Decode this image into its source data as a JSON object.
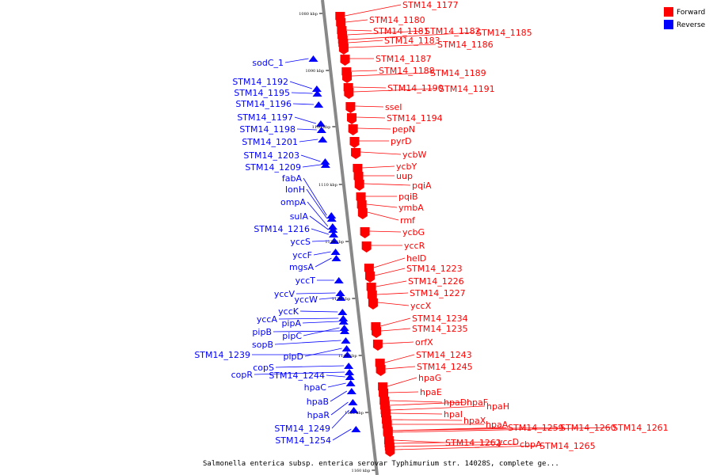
{
  "title": "Salmonella enterica subsp. enterica serovar Typhimurium str. 14028S, complete ge...",
  "legend": [
    {
      "label": "Forward",
      "color": "#ff0000"
    },
    {
      "label": "Reverse",
      "color": "#0000ff"
    }
  ],
  "ticks": [
    "1080 kbp",
    "1090 kbp",
    "1100 kbp",
    "1110 kbp",
    "1120 kbp",
    "1130 kbp",
    "1140 kbp",
    "1150 kbp",
    "1160 kbp"
  ],
  "forward_genes": [
    "STM14_1177",
    "STM14_1180",
    "STM14_1181",
    "STM14_1182",
    "STM14_1185",
    "STM14_1183",
    "STM14_1186",
    "STM14_1187",
    "STM14_1188",
    "STM14_1189",
    "STM14_1190",
    "STM14_1191",
    "sseI",
    "STM14_1194",
    "pepN",
    "pyrD",
    "ycbW",
    "ycbY",
    "uup",
    "pqiA",
    "pqiB",
    "ymbA",
    "rmf",
    "ycbG",
    "yccR",
    "helD",
    "STM14_1223",
    "STM14_1226",
    "STM14_1227",
    "yccX",
    "STM14_1234",
    "STM14_1235",
    "orfX",
    "STM14_1243",
    "STM14_1245",
    "hpaG",
    "hpaE",
    "hpaD",
    "hpaF",
    "hpaH",
    "hpaI",
    "hpaX",
    "hpaA",
    "STM14_1259",
    "STM14_1260",
    "STM14_1261",
    "STM14_1262",
    "yccD",
    "cbpA",
    "STM14_1265"
  ],
  "reverse_genes": [
    "sodC_1",
    "STM14_1192",
    "STM14_1195",
    "STM14_1196",
    "STM14_1197",
    "STM14_1198",
    "STM14_1201",
    "STM14_1203",
    "STM14_1209",
    "fabA",
    "lonH",
    "ompA",
    "sulA",
    "STM14_1216",
    "yccS",
    "yccF",
    "mgsA",
    "yccT",
    "yccV",
    "yccW",
    "yccK",
    "yccA",
    "pipA",
    "pipB",
    "pipC",
    "sopB",
    "STM14_1239",
    "pipD",
    "copS",
    "copR",
    "STM14_1244",
    "hpaC",
    "hpaB",
    "hpaR",
    "STM14_1249",
    "STM14_1254"
  ]
}
